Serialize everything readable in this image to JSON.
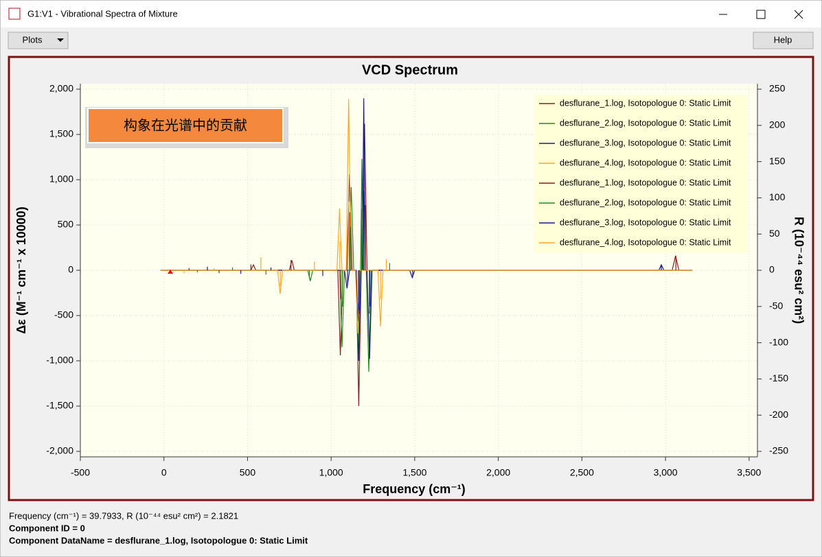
{
  "window": {
    "title": "G1:V1 - Vibrational Spectra of Mixture",
    "menu": [
      "Plots"
    ],
    "help": "Help",
    "status": [
      "Frequency (cm⁻¹) = 39.7933, R (10⁻⁴⁴ esu² cm²) = 2.1821",
      "Component ID = 0",
      "Component DataName = desflurane_1.log, Isotopologue 0: Static Limit"
    ]
  },
  "chart_data": {
    "type": "line",
    "title": "VCD Spectrum",
    "annotation": "构象在光谱中的贡献",
    "x_label": "Frequency (cm⁻¹)",
    "y_label": "Δε (M⁻¹ cm⁻¹ x 10000)",
    "y2_label": "R (10⁻⁴⁴ esu² cm²)",
    "xlim": [
      -500,
      3550
    ],
    "xticks": [
      -500,
      0,
      500,
      {
        "value": 1000,
        "label": "1,000"
      },
      {
        "value": 1500,
        "label": "1,500"
      },
      {
        "value": 2000,
        "label": "2,000"
      },
      {
        "value": 2500,
        "label": "2,500"
      },
      {
        "value": 3000,
        "label": "3,000"
      },
      {
        "value": 3500,
        "label": "3,500"
      }
    ],
    "ylim": [
      -2000,
      2000
    ],
    "yticks": [
      {
        "value": -2000,
        "label": "-2,000"
      },
      {
        "value": -1500,
        "label": "-1,500"
      },
      {
        "value": -1000,
        "label": "-1,000"
      },
      -500,
      0,
      500,
      {
        "value": 1000,
        "label": "1,000"
      },
      {
        "value": 1500,
        "label": "1,500"
      },
      {
        "value": 2000,
        "label": "2,000"
      }
    ],
    "y2lim": [
      -250,
      250
    ],
    "y2ticks": [
      -250,
      -200,
      -150,
      -100,
      -50,
      0,
      50,
      100,
      150,
      200,
      250
    ],
    "grid": true,
    "legend": "upper right",
    "series": [
      {
        "name": "desflurane_1.log, Isotopologue 0:  Static Limit",
        "color": "#8b1c1c",
        "style": "line",
        "x": [
          -20,
          520,
          535,
          550,
          750,
          765,
          780,
          1040,
          1055,
          1070,
          1095,
          1110,
          1125,
          1150,
          1165,
          1180,
          1190,
          1200,
          1215,
          3040,
          3060,
          3080,
          3160
        ],
        "values": [
          0,
          0,
          60,
          0,
          0,
          110,
          0,
          0,
          -940,
          0,
          0,
          1060,
          0,
          0,
          -1500,
          0,
          0,
          1620,
          0,
          0,
          160,
          0,
          0
        ]
      },
      {
        "name": "desflurane_2.log, Isotopologue 0:  Static Limit",
        "color": "#1f8a1f",
        "style": "line",
        "x": [
          -20,
          860,
          875,
          890,
          1050,
          1065,
          1080,
          1105,
          1120,
          1135,
          1150,
          1160,
          1172,
          1176,
          1184,
          1192,
          1210,
          1225,
          1240,
          3160
        ],
        "values": [
          0,
          0,
          -120,
          0,
          0,
          -850,
          0,
          0,
          920,
          0,
          0,
          -950,
          0,
          0,
          1230,
          0,
          0,
          -1120,
          0,
          0
        ]
      },
      {
        "name": "desflurane_3.log, Isotopologue 0:  Static Limit",
        "color": "#1c1c8a",
        "style": "line",
        "x": [
          -20,
          1080,
          1095,
          1110,
          1150,
          1165,
          1178,
          1186,
          1195,
          1204,
          1215,
          1230,
          1245,
          1470,
          1485,
          1500,
          2960,
          2975,
          2990,
          3160
        ],
        "values": [
          0,
          0,
          -200,
          0,
          0,
          -1000,
          0,
          0,
          1900,
          0,
          0,
          -980,
          0,
          0,
          -80,
          0,
          0,
          60,
          0,
          0
        ]
      },
      {
        "name": "desflurane_4.log, Isotopologue 0:  Static Limit",
        "color": "#ffa726",
        "style": "line",
        "x": [
          -20,
          680,
          695,
          710,
          1035,
          1050,
          1065,
          1090,
          1105,
          1120,
          1145,
          1160,
          1170,
          1280,
          1295,
          1310,
          3160
        ],
        "values": [
          0,
          0,
          -260,
          0,
          0,
          680,
          0,
          0,
          1890,
          0,
          0,
          -700,
          0,
          0,
          -620,
          0,
          0
        ]
      },
      {
        "name": "desflurane_1.log, Isotopologue 0:  Static Limit",
        "color": "#8b1c1c",
        "style": "stick",
        "axis": "y2",
        "x": [
          150,
          330,
          520,
          760,
          1058,
          1112,
          1168,
          1205,
          3062
        ],
        "values": [
          3,
          -4,
          8,
          14,
          -40,
          80,
          -60,
          90,
          20
        ]
      },
      {
        "name": "desflurane_2.log, Isotopologue 0:  Static Limit",
        "color": "#1f8a1f",
        "style": "stick",
        "axis": "y2",
        "x": [
          200,
          410,
          610,
          870,
          1068,
          1118,
          1162,
          1182,
          1228,
          1350
        ],
        "values": [
          -3,
          4,
          -6,
          -12,
          -50,
          60,
          -70,
          85,
          -60,
          10
        ]
      },
      {
        "name": "desflurane_3.log, Isotopologue 0:  Static Limit",
        "color": "#1c1c8a",
        "style": "stick",
        "axis": "y2",
        "x": [
          260,
          460,
          640,
          950,
          1098,
          1166,
          1196,
          1232,
          1488,
          2975
        ],
        "values": [
          5,
          -5,
          4,
          -8,
          -20,
          -55,
          110,
          -50,
          -10,
          8
        ]
      },
      {
        "name": "desflurane_4.log, Isotopologue 0:  Static Limit",
        "color": "#ffa726",
        "style": "stick",
        "axis": "y2",
        "x": [
          120,
          300,
          580,
          696,
          900,
          1052,
          1106,
          1160,
          1296,
          1330
        ],
        "values": [
          -4,
          3,
          18,
          -22,
          12,
          40,
          95,
          -45,
          -40,
          15
        ]
      }
    ]
  }
}
